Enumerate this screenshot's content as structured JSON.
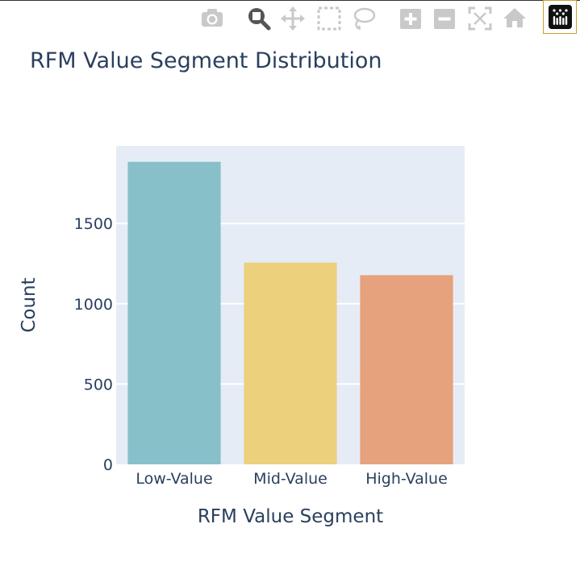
{
  "toolbar": {
    "buttons": [
      {
        "name": "camera-icon"
      },
      {
        "name": "zoom-icon"
      },
      {
        "name": "pan-icon"
      },
      {
        "name": "box-select-icon"
      },
      {
        "name": "lasso-select-icon"
      },
      {
        "name": "zoom-in-icon"
      },
      {
        "name": "zoom-out-icon"
      },
      {
        "name": "autoscale-icon"
      },
      {
        "name": "home-icon"
      }
    ],
    "logo": "plotly-logo-icon",
    "active_button": "zoom-icon"
  },
  "chart_data": {
    "type": "bar",
    "title": "RFM Value Segment Distribution",
    "xlabel": "RFM Value Segment",
    "ylabel": "Count",
    "categories": [
      "Low-Value",
      "Mid-Value",
      "High-Value"
    ],
    "values": [
      1884,
      1256,
      1178
    ],
    "colors": [
      "#88c0ca",
      "#ecd07c",
      "#e6a27c"
    ],
    "ylim": [
      0,
      1983
    ],
    "yticks": [
      0,
      500,
      1000,
      1500
    ],
    "ytick_labels": [
      "0",
      "500",
      "1000",
      "1500"
    ],
    "grid": true,
    "plot_background": "#e5ecf6",
    "text_color": "#2a3f5f"
  }
}
